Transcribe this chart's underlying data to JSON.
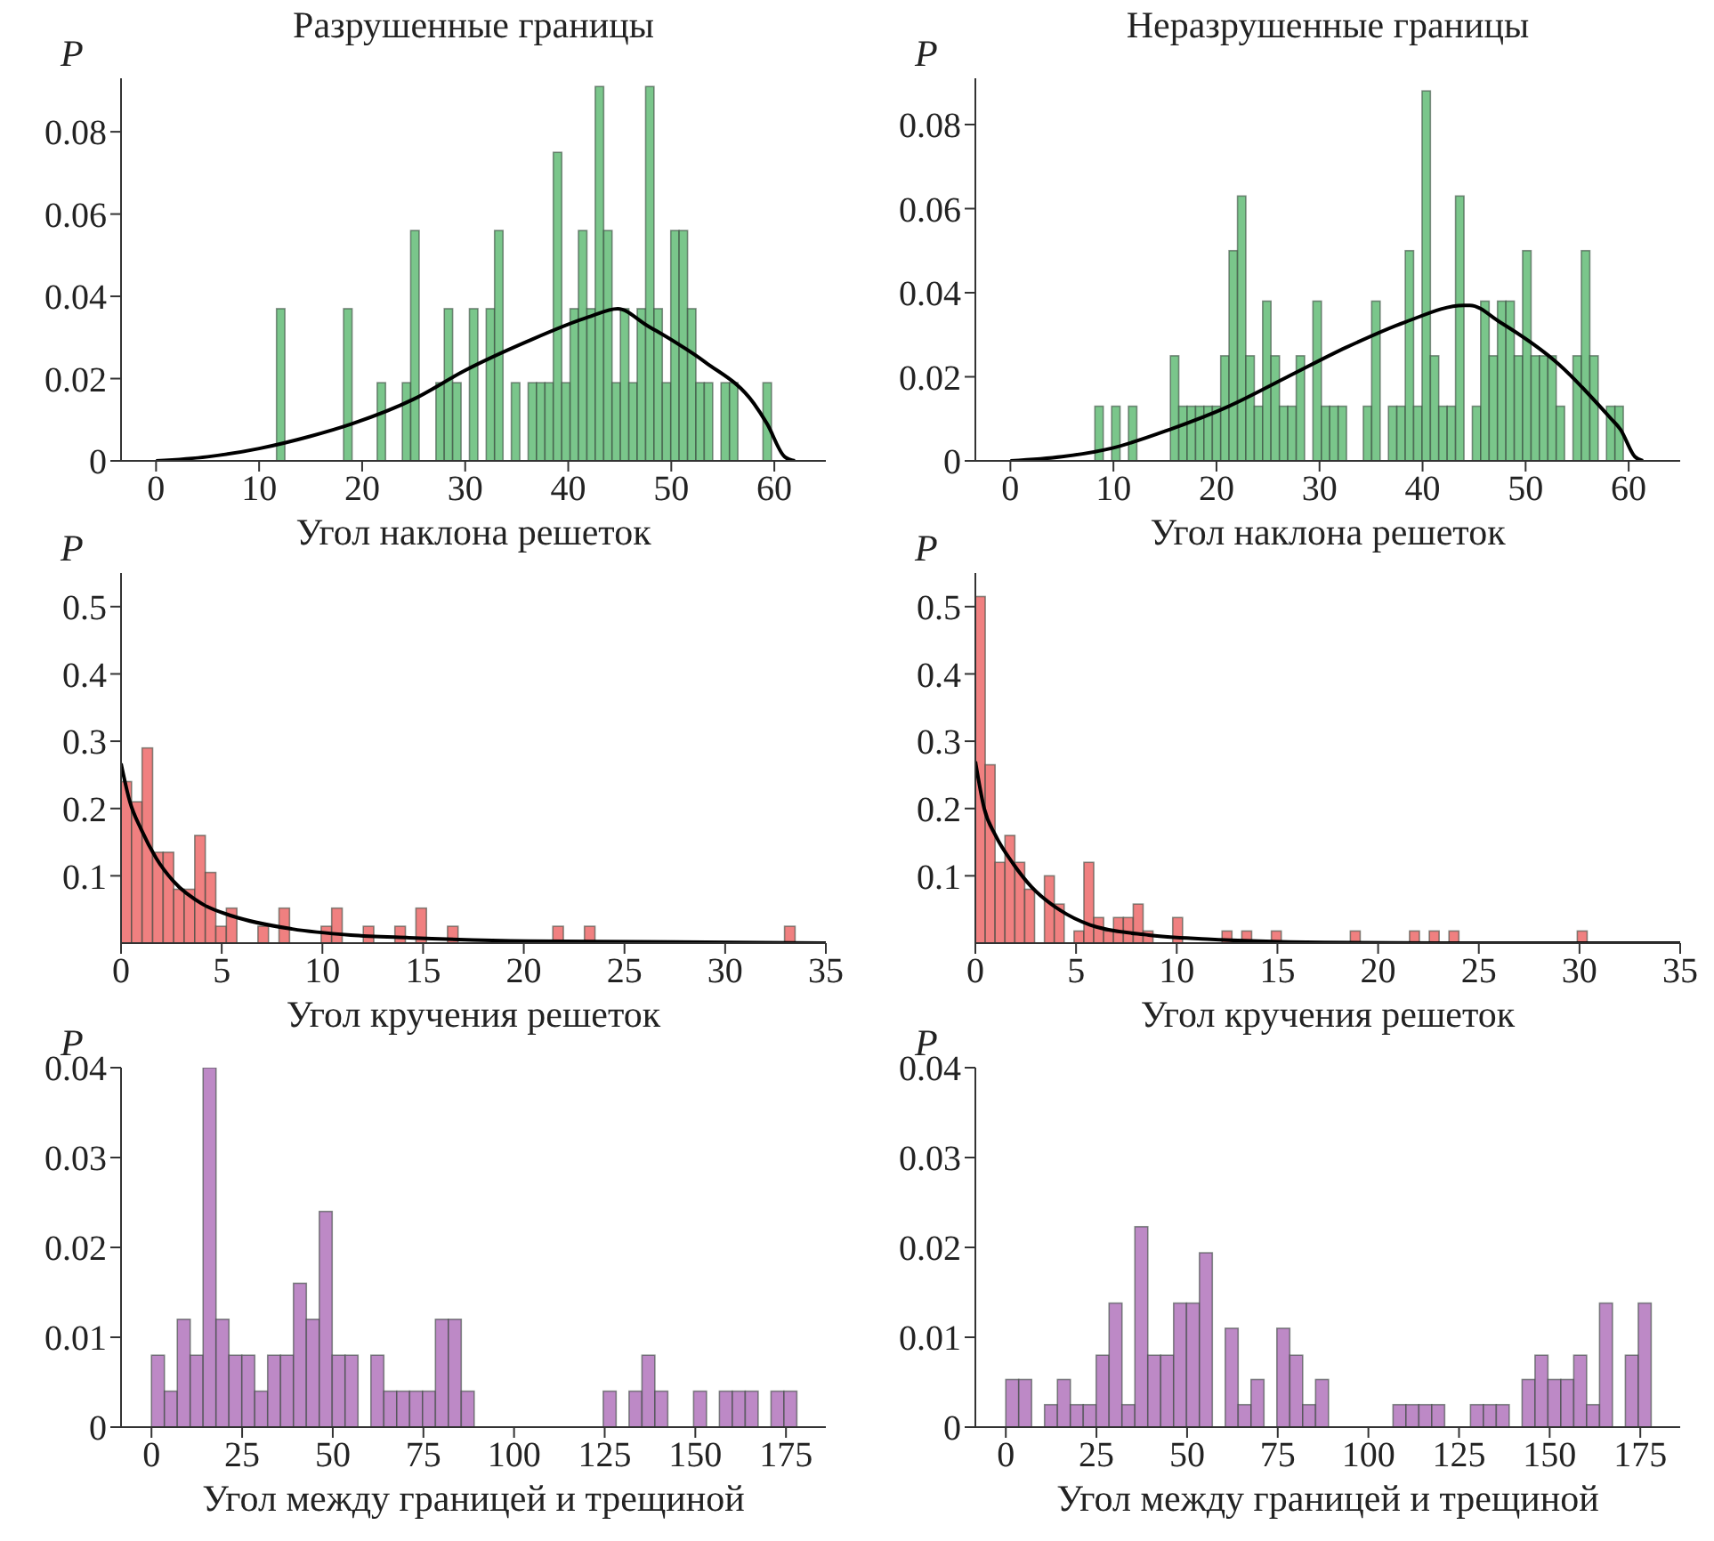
{
  "chart_data": [
    {
      "type": "histogram",
      "title": "Разрушенные границы",
      "xlabel": "Угол наклона решеток",
      "ylabel": "P",
      "color": "#6cc07e",
      "xlim": [
        -3.4,
        65
      ],
      "xticks": [
        0,
        10,
        20,
        30,
        40,
        50,
        60
      ],
      "ylim": [
        0,
        0.093
      ],
      "yticks": [
        0,
        0.02,
        0.04,
        0.06,
        0.08
      ],
      "bins": [
        11.69,
        12.5,
        13.32,
        14.13,
        14.95,
        15.76,
        16.57,
        17.39,
        18.2,
        19.02,
        19.83,
        20.64,
        21.46,
        22.27,
        23.09,
        23.9,
        24.71,
        25.53,
        26.34,
        27.16,
        27.97,
        28.78,
        29.6,
        30.41,
        31.23,
        32.04,
        32.85,
        33.67,
        34.48,
        35.3,
        36.11,
        36.92,
        37.74,
        38.55,
        39.37,
        40.18,
        40.99,
        41.81,
        42.62,
        43.44,
        44.25,
        45.06,
        45.88,
        46.69,
        47.51,
        48.32,
        49.13,
        49.95,
        50.76,
        51.58,
        52.39,
        53.2,
        54.02,
        54.83,
        55.65,
        56.46,
        57.27,
        58.09,
        58.9,
        59.72
      ],
      "values": [
        0.037,
        0,
        0,
        0,
        0,
        0,
        0,
        0,
        0.037,
        0,
        0,
        0,
        0.019,
        0,
        0,
        0.019,
        0.056,
        0,
        0,
        0.019,
        0.037,
        0.019,
        0,
        0.037,
        0,
        0.037,
        0.056,
        0,
        0.019,
        0,
        0.019,
        0.019,
        0.019,
        0.075,
        0.019,
        0.037,
        0.056,
        0.037,
        0.091,
        0.056,
        0.019,
        0.037,
        0.019,
        0.037,
        0.091,
        0.037,
        0.019,
        0.056,
        0.056,
        0.037,
        0.019,
        0.019,
        0,
        0.019,
        0.019,
        0,
        0,
        0,
        0.019
      ],
      "series": [
        {
          "type": "line",
          "color": "#000000",
          "x": [
            0,
            5,
            10,
            15,
            19,
            25,
            30,
            36,
            42,
            44.8,
            47.6,
            53.3,
            58,
            59.3,
            61,
            62
          ],
          "values": [
            0,
            0.001,
            0.003,
            0.006,
            0.009,
            0.015,
            0.022,
            0.029,
            0.035,
            0.037,
            0.033,
            0.024,
            0.014,
            0.009,
            0.001,
            0
          ]
        }
      ]
    },
    {
      "type": "histogram",
      "title": "Неразрушенные границы",
      "xlabel": "Угол наклона решеток",
      "ylabel": "P",
      "color": "#6cc07e",
      "xlim": [
        -3.4,
        65
      ],
      "xticks": [
        0,
        10,
        20,
        30,
        40,
        50,
        60
      ],
      "ylim": [
        0,
        0.091
      ],
      "yticks": [
        0,
        0.02,
        0.04,
        0.06,
        0.08
      ],
      "bins": [
        8.2,
        9.01,
        9.83,
        10.64,
        11.46,
        12.27,
        13.08,
        13.9,
        14.71,
        15.53,
        16.34,
        17.15,
        17.97,
        18.78,
        19.6,
        20.41,
        21.22,
        22.04,
        22.85,
        23.67,
        24.48,
        25.29,
        26.11,
        26.92,
        27.74,
        28.55,
        29.36,
        30.18,
        30.99,
        31.81,
        32.62,
        33.43,
        34.25,
        35.06,
        35.88,
        36.69,
        37.5,
        38.32,
        39.13,
        39.95,
        40.76,
        41.57,
        42.39,
        43.2,
        44.02,
        44.83,
        45.64,
        46.46,
        47.27,
        48.09,
        48.9,
        49.71,
        50.53,
        51.34,
        52.16,
        52.97,
        53.78,
        54.6,
        55.41,
        56.23,
        57.04,
        57.85,
        58.67,
        59.48
      ],
      "values": [
        0.013,
        0,
        0.013,
        0,
        0.013,
        0,
        0,
        0,
        0,
        0.025,
        0.013,
        0.013,
        0.013,
        0.013,
        0.013,
        0.025,
        0.05,
        0.063,
        0.025,
        0.013,
        0.038,
        0.025,
        0.013,
        0.013,
        0.025,
        0,
        0.038,
        0.013,
        0.013,
        0.013,
        0,
        0,
        0.013,
        0.038,
        0,
        0.013,
        0.013,
        0.05,
        0.013,
        0.088,
        0.025,
        0.013,
        0.013,
        0.063,
        0,
        0.013,
        0.038,
        0.025,
        0.038,
        0.038,
        0.025,
        0.05,
        0.025,
        0.025,
        0.025,
        0.013,
        0,
        0.025,
        0.05,
        0.025,
        0,
        0.013,
        0.013
      ],
      "series": [
        {
          "type": "line",
          "color": "#000000",
          "x": [
            0,
            5,
            9.8,
            15.5,
            21.2,
            26.9,
            32.6,
            38.3,
            44,
            44.6,
            47.5,
            53.2,
            58.3,
            59.2,
            60.6,
            61.4
          ],
          "values": [
            0,
            0.001,
            0.003,
            0.0075,
            0.013,
            0.02,
            0.027,
            0.033,
            0.037,
            0.037,
            0.033,
            0.023,
            0.01,
            0.0075,
            0.001,
            0
          ]
        }
      ]
    },
    {
      "type": "histogram",
      "xlabel": "Угол кручения решеток",
      "ylabel": "P",
      "color": "#ee7272",
      "xlim": [
        0,
        35
      ],
      "xticks": [
        0,
        5,
        10,
        15,
        20,
        25,
        30,
        35
      ],
      "ylim": [
        0,
        0.55
      ],
      "yticks": [
        0.1,
        0.2,
        0.3,
        0.4,
        0.5
      ],
      "bins": [
        0,
        0.523,
        1.046,
        1.569,
        2.092,
        2.615,
        3.138,
        3.661,
        4.184,
        4.707,
        5.23,
        5.753,
        6.276,
        6.799,
        7.322,
        7.845,
        8.368,
        8.891,
        9.414,
        9.937,
        10.46,
        10.983,
        11.506,
        12.029,
        12.552,
        13.075,
        13.598,
        14.121,
        14.644,
        15.167,
        15.69,
        16.213,
        16.736,
        17.259,
        17.782,
        18.305,
        18.828,
        19.351,
        19.874,
        20.397,
        20.92,
        21.443,
        21.966,
        22.489,
        23.012,
        23.535,
        24.058,
        24.581,
        25.104,
        25.627,
        26.15,
        26.673,
        27.196,
        27.719,
        28.242,
        28.765,
        29.288,
        29.811,
        30.334,
        30.857,
        31.38,
        31.903,
        32.426,
        32.949,
        33.472
      ],
      "values": [
        0.24,
        0.21,
        0.29,
        0.135,
        0.135,
        0.08,
        0.08,
        0.16,
        0.105,
        0.025,
        0.052,
        0,
        0,
        0.025,
        0,
        0.052,
        0,
        0,
        0,
        0.025,
        0.052,
        0,
        0,
        0.025,
        0,
        0,
        0.025,
        0,
        0.052,
        0,
        0,
        0.025,
        0,
        0,
        0,
        0,
        0,
        0,
        0,
        0,
        0,
        0.025,
        0,
        0,
        0.025,
        0,
        0,
        0,
        0,
        0,
        0,
        0,
        0,
        0,
        0,
        0,
        0,
        0,
        0,
        0,
        0,
        0,
        0,
        0.025
      ],
      "series": [
        {
          "type": "line",
          "color": "#000000",
          "x": [
            0,
            0.44,
            1,
            1.75,
            2.6,
            4.1,
            5.55,
            8.5,
            11.4,
            14.3,
            20.2,
            26,
            35
          ],
          "values": [
            0.267,
            0.21,
            0.169,
            0.126,
            0.092,
            0.057,
            0.04,
            0.021,
            0.012,
            0.008,
            0.003,
            0.002,
            0
          ]
        }
      ]
    },
    {
      "type": "histogram",
      "xlabel": "Угол кручения решеток",
      "ylabel": "P",
      "color": "#ee7272",
      "xlim": [
        0,
        35
      ],
      "xticks": [
        0,
        5,
        10,
        15,
        20,
        25,
        30,
        35
      ],
      "ylim": [
        0,
        0.55
      ],
      "yticks": [
        0.1,
        0.2,
        0.3,
        0.4,
        0.5
      ],
      "bins": [
        0,
        0.49,
        0.98,
        1.47,
        1.96,
        2.45,
        2.94,
        3.43,
        3.92,
        4.41,
        4.9,
        5.39,
        5.88,
        6.37,
        6.86,
        7.35,
        7.84,
        8.33,
        8.82,
        9.31,
        9.8,
        10.29,
        10.78,
        11.27,
        11.76,
        12.25,
        12.74,
        13.23,
        13.72,
        14.21,
        14.7,
        15.19,
        15.68,
        16.17,
        16.66,
        17.15,
        17.64,
        18.13,
        18.62,
        19.11,
        19.6,
        20.09,
        20.58,
        21.07,
        21.56,
        22.05,
        22.54,
        23.03,
        23.52,
        24.01,
        24.5,
        24.99,
        25.48,
        25.97,
        26.46,
        26.95,
        27.44,
        27.93,
        28.42,
        28.91,
        29.4,
        29.89,
        30.38
      ],
      "values": [
        0.515,
        0.265,
        0.12,
        0.16,
        0.12,
        0.08,
        0,
        0.1,
        0.058,
        0,
        0.018,
        0.12,
        0.038,
        0.018,
        0.038,
        0.038,
        0.058,
        0.018,
        0,
        0,
        0.038,
        0,
        0,
        0,
        0,
        0.018,
        0,
        0.018,
        0,
        0,
        0.018,
        0,
        0,
        0,
        0,
        0,
        0,
        0,
        0.018,
        0,
        0,
        0,
        0,
        0,
        0.018,
        0,
        0.018,
        0,
        0.018,
        0,
        0,
        0,
        0,
        0,
        0,
        0,
        0,
        0,
        0,
        0,
        0,
        0.018
      ],
      "series": [
        {
          "type": "line",
          "color": "#000000",
          "x": [
            0,
            0.44,
            1,
            1.9,
            2.8,
            4.2,
            5.7,
            8.6,
            11.5,
            17.3,
            23,
            35
          ],
          "values": [
            0.27,
            0.2,
            0.16,
            0.117,
            0.083,
            0.049,
            0.027,
            0.012,
            0.006,
            0.001,
            0,
            0
          ]
        }
      ]
    },
    {
      "type": "histogram",
      "xlabel": "Угол между границей и трещиной",
      "ylabel": "P",
      "color": "#b67cc0",
      "xlim": [
        -8.4,
        186
      ],
      "xticks": [
        0,
        25,
        50,
        75,
        100,
        125,
        150,
        175
      ],
      "ylim": [
        0,
        0.04
      ],
      "yticks": [
        0,
        0.01,
        0.02,
        0.03,
        0.04
      ],
      "bins": [
        0,
        3.56,
        7.12,
        10.68,
        14.24,
        17.8,
        21.36,
        24.92,
        28.48,
        32.04,
        35.6,
        39.16,
        42.72,
        46.28,
        49.84,
        53.4,
        56.96,
        60.52,
        64.08,
        67.64,
        71.2,
        74.76,
        78.32,
        81.88,
        85.44,
        89,
        92.56,
        96.12,
        99.68,
        103.24,
        106.8,
        110.36,
        113.92,
        117.48,
        121.04,
        124.6,
        128.16,
        131.72,
        135.28,
        138.84,
        142.4,
        145.96,
        149.52,
        153.08,
        156.64,
        160.2,
        163.76,
        167.32,
        170.88,
        174.44,
        178
      ],
      "values": [
        0.008,
        0.004,
        0.012,
        0.008,
        0.04,
        0.012,
        0.008,
        0.008,
        0.004,
        0.008,
        0.008,
        0.016,
        0.012,
        0.024,
        0.008,
        0.008,
        0,
        0.008,
        0.004,
        0.004,
        0.004,
        0.004,
        0.012,
        0.012,
        0.004,
        0,
        0,
        0,
        0,
        0,
        0,
        0,
        0,
        0,
        0,
        0.004,
        0,
        0.004,
        0.008,
        0.004,
        0,
        0,
        0.004,
        0,
        0.004,
        0.004,
        0.004,
        0,
        0.004,
        0.004
      ]
    },
    {
      "type": "histogram",
      "xlabel": "Угол между границей и трещиной",
      "ylabel": "P",
      "color": "#b67cc0",
      "xlim": [
        -8.4,
        186
      ],
      "xticks": [
        0,
        25,
        50,
        75,
        100,
        125,
        150,
        175
      ],
      "ylim": [
        0,
        0.04
      ],
      "yticks": [
        0,
        0.01,
        0.02,
        0.03,
        0.04
      ],
      "bins": [
        0,
        3.56,
        7.12,
        10.68,
        14.24,
        17.8,
        21.36,
        24.92,
        28.48,
        32.04,
        35.6,
        39.16,
        42.72,
        46.28,
        49.84,
        53.4,
        56.96,
        60.52,
        64.08,
        67.64,
        71.2,
        74.76,
        78.32,
        81.88,
        85.44,
        89,
        92.56,
        96.12,
        99.68,
        103.24,
        106.8,
        110.36,
        113.92,
        117.48,
        121.04,
        124.6,
        128.16,
        131.72,
        135.28,
        138.84,
        142.4,
        145.96,
        149.52,
        153.08,
        156.64,
        160.2,
        163.76,
        167.32,
        170.88,
        174.44,
        178
      ],
      "values": [
        0.0053,
        0.0053,
        0,
        0.0025,
        0.0053,
        0.0025,
        0.0025,
        0.008,
        0.0138,
        0.0025,
        0.0223,
        0.008,
        0.008,
        0.0138,
        0.0138,
        0.0194,
        0,
        0.011,
        0.0025,
        0.0053,
        0,
        0.011,
        0.008,
        0.0025,
        0.0053,
        0,
        0,
        0,
        0,
        0,
        0.0025,
        0.0025,
        0.0025,
        0.0025,
        0,
        0,
        0.0025,
        0.0025,
        0.0025,
        0,
        0.0053,
        0.008,
        0.0053,
        0.0053,
        0.008,
        0.0025,
        0.0138,
        0,
        0.008,
        0.0138
      ]
    }
  ]
}
